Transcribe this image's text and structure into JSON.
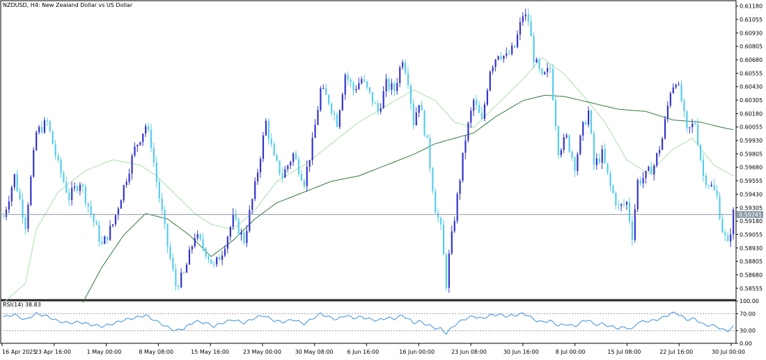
{
  "window": {
    "title": "NZDUSD, H4:  New Zealand Dollar vs US Dollar",
    "symbol": "NZDUSD",
    "timeframe": "H4",
    "description": "New Zealand Dollar vs US Dollar"
  },
  "colors": {
    "background": "#ffffff",
    "frame": "#000000",
    "bull_candle": "#3333cc",
    "bear_candle": "#55ccee",
    "ma_fast": "#a8e0a8",
    "ma_slow": "#2f7a3a",
    "price_line": "#8c9aa8",
    "price_tag_bg": "#8c9aa8",
    "rsi_line": "#3a8fe0",
    "rsi_level": "#999999"
  },
  "chart_data": [
    {
      "type": "candlestick",
      "title": "NZDUSD, H4:  New Zealand Dollar vs US Dollar",
      "ylim": [
        0.5845,
        0.6123
      ],
      "y_ticks": [
        "0.61180",
        "0.61055",
        "0.60930",
        "0.60805",
        "0.60680",
        "0.60555",
        "0.60430",
        "0.60305",
        "0.60180",
        "0.60055",
        "0.59930",
        "0.59805",
        "0.59680",
        "0.59555",
        "0.59430",
        "0.59305",
        "0.59180",
        "0.59055",
        "0.58930",
        "0.58805",
        "0.58680",
        "0.58555"
      ],
      "current_price": "0.59241",
      "x_ticks": [
        "16 Apr 2025",
        "23 Apr 16:00",
        "1 May 00:00",
        "8 May 08:00",
        "15 May 16:00",
        "23 May 00:00",
        "30 May 08:00",
        "6 Jun 16:00",
        "16 Jun 00:00",
        "23 Jun 08:00",
        "30 Jun 16:00",
        "8 Jul 00:00",
        "15 Jul 08:00",
        "22 Jul 16:00",
        "30 Jul 00:00"
      ],
      "close_path": [
        [
          0,
          0.5922
        ],
        [
          4,
          0.596
        ],
        [
          8,
          0.5915
        ],
        [
          12,
          0.6
        ],
        [
          16,
          0.601
        ],
        [
          20,
          0.597
        ],
        [
          24,
          0.594
        ],
        [
          28,
          0.5955
        ],
        [
          32,
          0.5925
        ],
        [
          36,
          0.5895
        ],
        [
          40,
          0.5915
        ],
        [
          44,
          0.595
        ],
        [
          48,
          0.5985
        ],
        [
          52,
          0.6007
        ],
        [
          54,
          0.599
        ],
        [
          56,
          0.5955
        ],
        [
          60,
          0.5895
        ],
        [
          63,
          0.5858
        ],
        [
          66,
          0.5868
        ],
        [
          70,
          0.5905
        ],
        [
          74,
          0.589
        ],
        [
          77,
          0.5875
        ],
        [
          80,
          0.589
        ],
        [
          84,
          0.592
        ],
        [
          88,
          0.59
        ],
        [
          92,
          0.595
        ],
        [
          94,
          0.598
        ],
        [
          96,
          0.601
        ],
        [
          99,
          0.5975
        ],
        [
          102,
          0.596
        ],
        [
          106,
          0.598
        ],
        [
          110,
          0.5955
        ],
        [
          113,
          0.599
        ],
        [
          116,
          0.604
        ],
        [
          119,
          0.603
        ],
        [
          122,
          0.601
        ],
        [
          125,
          0.6055
        ],
        [
          128,
          0.604
        ],
        [
          131,
          0.605
        ],
        [
          134,
          0.6035
        ],
        [
          137,
          0.602
        ],
        [
          140,
          0.6045
        ],
        [
          143,
          0.604
        ],
        [
          146,
          0.607
        ],
        [
          148,
          0.605
        ],
        [
          150,
          0.601
        ],
        [
          152,
          0.603
        ],
        [
          155,
          0.599
        ],
        [
          158,
          0.593
        ],
        [
          160,
          0.591
        ],
        [
          162,
          0.586
        ],
        [
          163,
          0.5885
        ],
        [
          166,
          0.594
        ],
        [
          169,
          0.5995
        ],
        [
          172,
          0.603
        ],
        [
          175,
          0.601
        ],
        [
          178,
          0.606
        ],
        [
          181,
          0.6075
        ],
        [
          184,
          0.607
        ],
        [
          187,
          0.608
        ],
        [
          190,
          0.611
        ],
        [
          192,
          0.6105
        ],
        [
          194,
          0.607
        ],
        [
          197,
          0.605
        ],
        [
          200,
          0.606
        ],
        [
          203,
          0.5985
        ],
        [
          206,
          0.5995
        ],
        [
          209,
          0.597
        ],
        [
          212,
          0.6005
        ],
        [
          214,
          0.602
        ],
        [
          216,
          0.597
        ],
        [
          219,
          0.598
        ],
        [
          222,
          0.595
        ],
        [
          225,
          0.593
        ],
        [
          228,
          0.5935
        ],
        [
          230,
          0.5905
        ],
        [
          232,
          0.5955
        ],
        [
          235,
          0.596
        ],
        [
          238,
          0.597
        ],
        [
          241,
          0.5995
        ],
        [
          244,
          0.604
        ],
        [
          246,
          0.605
        ],
        [
          248,
          0.603
        ],
        [
          250,
          0.6
        ],
        [
          253,
          0.601
        ],
        [
          256,
          0.596
        ],
        [
          259,
          0.595
        ],
        [
          261,
          0.594
        ],
        [
          263,
          0.591
        ],
        [
          265,
          0.5895
        ],
        [
          267,
          0.5925
        ]
      ],
      "series": [
        {
          "name": "",
          "type": "ma",
          "values": [
            [
              0,
              0.5842
            ],
            [
              8,
              0.586
            ],
            [
              12,
              0.591
            ],
            [
              20,
              0.5945
            ],
            [
              30,
              0.5965
            ],
            [
              40,
              0.5975
            ],
            [
              50,
              0.597
            ],
            [
              56,
              0.596
            ],
            [
              62,
              0.5945
            ],
            [
              70,
              0.5925
            ],
            [
              76,
              0.5915
            ],
            [
              84,
              0.591
            ],
            [
              92,
              0.5928
            ],
            [
              100,
              0.5955
            ],
            [
              110,
              0.597
            ],
            [
              120,
              0.599
            ],
            [
              130,
              0.601
            ],
            [
              140,
              0.6025
            ],
            [
              150,
              0.604
            ],
            [
              158,
              0.603
            ],
            [
              165,
              0.601
            ],
            [
              172,
              0.6005
            ],
            [
              180,
              0.6025
            ],
            [
              190,
              0.605
            ],
            [
              197,
              0.607
            ],
            [
              205,
              0.6055
            ],
            [
              212,
              0.6035
            ],
            [
              220,
              0.601
            ],
            [
              228,
              0.5975
            ],
            [
              236,
              0.5962
            ],
            [
              245,
              0.5985
            ],
            [
              252,
              0.5995
            ],
            [
              260,
              0.597
            ],
            [
              267,
              0.596
            ]
          ]
        },
        {
          "name": "",
          "type": "ma",
          "values": [
            [
              29,
              0.5842
            ],
            [
              36,
              0.5875
            ],
            [
              44,
              0.5905
            ],
            [
              52,
              0.5925
            ],
            [
              60,
              0.592
            ],
            [
              68,
              0.5905
            ],
            [
              76,
              0.5885
            ],
            [
              84,
              0.59
            ],
            [
              92,
              0.592
            ],
            [
              100,
              0.5935
            ],
            [
              110,
              0.5945
            ],
            [
              120,
              0.5955
            ],
            [
              130,
              0.596
            ],
            [
              140,
              0.597
            ],
            [
              150,
              0.598
            ],
            [
              158,
              0.599
            ],
            [
              165,
              0.5995
            ],
            [
              172,
              0.6
            ],
            [
              180,
              0.6015
            ],
            [
              190,
              0.603
            ],
            [
              198,
              0.6035
            ],
            [
              205,
              0.6034
            ],
            [
              215,
              0.6028
            ],
            [
              225,
              0.6022
            ],
            [
              235,
              0.602
            ],
            [
              245,
              0.6012
            ],
            [
              255,
              0.601
            ],
            [
              263,
              0.6005
            ],
            [
              267,
              0.6003
            ]
          ]
        }
      ]
    },
    {
      "type": "line",
      "title": "RSI(14) 38.83",
      "indicator": "RSI",
      "period": 14,
      "value": "38.83",
      "ylim": [
        0,
        100
      ],
      "y_ticks": [
        "100.00",
        "70.00",
        "30.00",
        "0.00"
      ],
      "levels": [
        70,
        30
      ],
      "values": [
        [
          0,
          62
        ],
        [
          4,
          68
        ],
        [
          8,
          55
        ],
        [
          12,
          70
        ],
        [
          16,
          64
        ],
        [
          20,
          52
        ],
        [
          24,
          48
        ],
        [
          28,
          50
        ],
        [
          32,
          44
        ],
        [
          36,
          40
        ],
        [
          40,
          46
        ],
        [
          44,
          55
        ],
        [
          48,
          60
        ],
        [
          52,
          66
        ],
        [
          56,
          52
        ],
        [
          60,
          38
        ],
        [
          63,
          30
        ],
        [
          66,
          35
        ],
        [
          70,
          52
        ],
        [
          74,
          48
        ],
        [
          77,
          40
        ],
        [
          80,
          48
        ],
        [
          84,
          56
        ],
        [
          88,
          48
        ],
        [
          92,
          60
        ],
        [
          95,
          66
        ],
        [
          99,
          54
        ],
        [
          102,
          50
        ],
        [
          106,
          56
        ],
        [
          110,
          46
        ],
        [
          113,
          58
        ],
        [
          116,
          70
        ],
        [
          119,
          62
        ],
        [
          122,
          56
        ],
        [
          125,
          66
        ],
        [
          128,
          60
        ],
        [
          131,
          62
        ],
        [
          134,
          57
        ],
        [
          137,
          54
        ],
        [
          140,
          60
        ],
        [
          143,
          58
        ],
        [
          146,
          66
        ],
        [
          148,
          58
        ],
        [
          150,
          48
        ],
        [
          152,
          52
        ],
        [
          155,
          44
        ],
        [
          158,
          36
        ],
        [
          160,
          34
        ],
        [
          162,
          24
        ],
        [
          163,
          30
        ],
        [
          166,
          48
        ],
        [
          169,
          58
        ],
        [
          172,
          64
        ],
        [
          175,
          58
        ],
        [
          178,
          66
        ],
        [
          181,
          68
        ],
        [
          184,
          64
        ],
        [
          187,
          66
        ],
        [
          190,
          70
        ],
        [
          192,
          66
        ],
        [
          194,
          56
        ],
        [
          197,
          50
        ],
        [
          200,
          53
        ],
        [
          203,
          42
        ],
        [
          206,
          45
        ],
        [
          209,
          40
        ],
        [
          212,
          52
        ],
        [
          214,
          56
        ],
        [
          216,
          44
        ],
        [
          219,
          46
        ],
        [
          222,
          40
        ],
        [
          225,
          36
        ],
        [
          228,
          38
        ],
        [
          230,
          32
        ],
        [
          232,
          50
        ],
        [
          235,
          52
        ],
        [
          238,
          54
        ],
        [
          241,
          60
        ],
        [
          244,
          70
        ],
        [
          246,
          72
        ],
        [
          248,
          64
        ],
        [
          250,
          56
        ],
        [
          253,
          58
        ],
        [
          256,
          44
        ],
        [
          259,
          42
        ],
        [
          261,
          40
        ],
        [
          263,
          32
        ],
        [
          265,
          30
        ],
        [
          267,
          38.83
        ]
      ]
    }
  ]
}
